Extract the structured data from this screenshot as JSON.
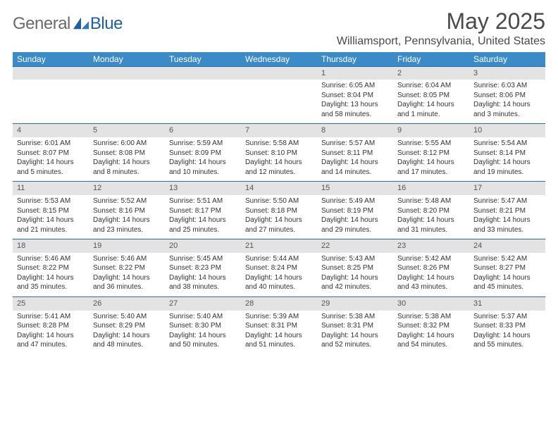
{
  "brand": {
    "general": "General",
    "blue": "Blue"
  },
  "title": "May 2025",
  "location": "Williamsport, Pennsylvania, United States",
  "colors": {
    "header_bg": "#3b8bc8",
    "header_text": "#ffffff",
    "daynum_bg": "#e3e3e3",
    "week_border": "#2b6ea8",
    "logo_gray": "#6a6a6a",
    "logo_blue": "#1e5fa8",
    "text": "#333333"
  },
  "day_headers": [
    "Sunday",
    "Monday",
    "Tuesday",
    "Wednesday",
    "Thursday",
    "Friday",
    "Saturday"
  ],
  "weeks": [
    {
      "nums": [
        "",
        "",
        "",
        "",
        "1",
        "2",
        "3"
      ],
      "cells": [
        {},
        {},
        {},
        {},
        {
          "sunrise": "Sunrise: 6:05 AM",
          "sunset": "Sunset: 8:04 PM",
          "day1": "Daylight: 13 hours",
          "day2": "and 58 minutes."
        },
        {
          "sunrise": "Sunrise: 6:04 AM",
          "sunset": "Sunset: 8:05 PM",
          "day1": "Daylight: 14 hours",
          "day2": "and 1 minute."
        },
        {
          "sunrise": "Sunrise: 6:03 AM",
          "sunset": "Sunset: 8:06 PM",
          "day1": "Daylight: 14 hours",
          "day2": "and 3 minutes."
        }
      ]
    },
    {
      "nums": [
        "4",
        "5",
        "6",
        "7",
        "8",
        "9",
        "10"
      ],
      "cells": [
        {
          "sunrise": "Sunrise: 6:01 AM",
          "sunset": "Sunset: 8:07 PM",
          "day1": "Daylight: 14 hours",
          "day2": "and 5 minutes."
        },
        {
          "sunrise": "Sunrise: 6:00 AM",
          "sunset": "Sunset: 8:08 PM",
          "day1": "Daylight: 14 hours",
          "day2": "and 8 minutes."
        },
        {
          "sunrise": "Sunrise: 5:59 AM",
          "sunset": "Sunset: 8:09 PM",
          "day1": "Daylight: 14 hours",
          "day2": "and 10 minutes."
        },
        {
          "sunrise": "Sunrise: 5:58 AM",
          "sunset": "Sunset: 8:10 PM",
          "day1": "Daylight: 14 hours",
          "day2": "and 12 minutes."
        },
        {
          "sunrise": "Sunrise: 5:57 AM",
          "sunset": "Sunset: 8:11 PM",
          "day1": "Daylight: 14 hours",
          "day2": "and 14 minutes."
        },
        {
          "sunrise": "Sunrise: 5:55 AM",
          "sunset": "Sunset: 8:12 PM",
          "day1": "Daylight: 14 hours",
          "day2": "and 17 minutes."
        },
        {
          "sunrise": "Sunrise: 5:54 AM",
          "sunset": "Sunset: 8:14 PM",
          "day1": "Daylight: 14 hours",
          "day2": "and 19 minutes."
        }
      ]
    },
    {
      "nums": [
        "11",
        "12",
        "13",
        "14",
        "15",
        "16",
        "17"
      ],
      "cells": [
        {
          "sunrise": "Sunrise: 5:53 AM",
          "sunset": "Sunset: 8:15 PM",
          "day1": "Daylight: 14 hours",
          "day2": "and 21 minutes."
        },
        {
          "sunrise": "Sunrise: 5:52 AM",
          "sunset": "Sunset: 8:16 PM",
          "day1": "Daylight: 14 hours",
          "day2": "and 23 minutes."
        },
        {
          "sunrise": "Sunrise: 5:51 AM",
          "sunset": "Sunset: 8:17 PM",
          "day1": "Daylight: 14 hours",
          "day2": "and 25 minutes."
        },
        {
          "sunrise": "Sunrise: 5:50 AM",
          "sunset": "Sunset: 8:18 PM",
          "day1": "Daylight: 14 hours",
          "day2": "and 27 minutes."
        },
        {
          "sunrise": "Sunrise: 5:49 AM",
          "sunset": "Sunset: 8:19 PM",
          "day1": "Daylight: 14 hours",
          "day2": "and 29 minutes."
        },
        {
          "sunrise": "Sunrise: 5:48 AM",
          "sunset": "Sunset: 8:20 PM",
          "day1": "Daylight: 14 hours",
          "day2": "and 31 minutes."
        },
        {
          "sunrise": "Sunrise: 5:47 AM",
          "sunset": "Sunset: 8:21 PM",
          "day1": "Daylight: 14 hours",
          "day2": "and 33 minutes."
        }
      ]
    },
    {
      "nums": [
        "18",
        "19",
        "20",
        "21",
        "22",
        "23",
        "24"
      ],
      "cells": [
        {
          "sunrise": "Sunrise: 5:46 AM",
          "sunset": "Sunset: 8:22 PM",
          "day1": "Daylight: 14 hours",
          "day2": "and 35 minutes."
        },
        {
          "sunrise": "Sunrise: 5:46 AM",
          "sunset": "Sunset: 8:22 PM",
          "day1": "Daylight: 14 hours",
          "day2": "and 36 minutes."
        },
        {
          "sunrise": "Sunrise: 5:45 AM",
          "sunset": "Sunset: 8:23 PM",
          "day1": "Daylight: 14 hours",
          "day2": "and 38 minutes."
        },
        {
          "sunrise": "Sunrise: 5:44 AM",
          "sunset": "Sunset: 8:24 PM",
          "day1": "Daylight: 14 hours",
          "day2": "and 40 minutes."
        },
        {
          "sunrise": "Sunrise: 5:43 AM",
          "sunset": "Sunset: 8:25 PM",
          "day1": "Daylight: 14 hours",
          "day2": "and 42 minutes."
        },
        {
          "sunrise": "Sunrise: 5:42 AM",
          "sunset": "Sunset: 8:26 PM",
          "day1": "Daylight: 14 hours",
          "day2": "and 43 minutes."
        },
        {
          "sunrise": "Sunrise: 5:42 AM",
          "sunset": "Sunset: 8:27 PM",
          "day1": "Daylight: 14 hours",
          "day2": "and 45 minutes."
        }
      ]
    },
    {
      "nums": [
        "25",
        "26",
        "27",
        "28",
        "29",
        "30",
        "31"
      ],
      "cells": [
        {
          "sunrise": "Sunrise: 5:41 AM",
          "sunset": "Sunset: 8:28 PM",
          "day1": "Daylight: 14 hours",
          "day2": "and 47 minutes."
        },
        {
          "sunrise": "Sunrise: 5:40 AM",
          "sunset": "Sunset: 8:29 PM",
          "day1": "Daylight: 14 hours",
          "day2": "and 48 minutes."
        },
        {
          "sunrise": "Sunrise: 5:40 AM",
          "sunset": "Sunset: 8:30 PM",
          "day1": "Daylight: 14 hours",
          "day2": "and 50 minutes."
        },
        {
          "sunrise": "Sunrise: 5:39 AM",
          "sunset": "Sunset: 8:31 PM",
          "day1": "Daylight: 14 hours",
          "day2": "and 51 minutes."
        },
        {
          "sunrise": "Sunrise: 5:38 AM",
          "sunset": "Sunset: 8:31 PM",
          "day1": "Daylight: 14 hours",
          "day2": "and 52 minutes."
        },
        {
          "sunrise": "Sunrise: 5:38 AM",
          "sunset": "Sunset: 8:32 PM",
          "day1": "Daylight: 14 hours",
          "day2": "and 54 minutes."
        },
        {
          "sunrise": "Sunrise: 5:37 AM",
          "sunset": "Sunset: 8:33 PM",
          "day1": "Daylight: 14 hours",
          "day2": "and 55 minutes."
        }
      ]
    }
  ]
}
